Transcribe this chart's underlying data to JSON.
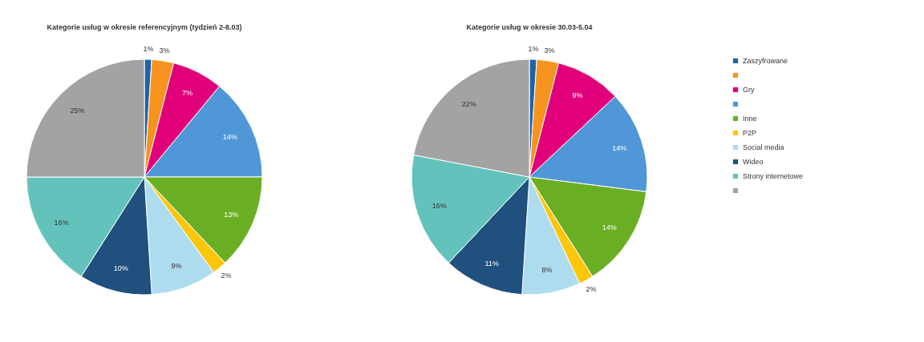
{
  "chart_data": [
    {
      "type": "pie",
      "title": "Kategorie usług w okresie referencyjnym (tydzień 2-8.03)",
      "categories": [
        "Zaszyfrowane",
        null,
        "Gry",
        null,
        "Inne",
        "P2P",
        "Social media",
        "Wideo",
        "Strony internetowe",
        null
      ],
      "values": [
        1,
        3,
        7,
        14,
        13,
        2,
        9,
        10,
        16,
        25
      ],
      "value_labels": [
        "1%",
        "3%",
        "7%",
        "14%",
        "13%",
        "2%",
        "9%",
        "10%",
        "16%",
        "25%"
      ],
      "colors": [
        "#1f62a6",
        "#f7931e",
        "#e2007a",
        "#4f97d6",
        "#6aaf23",
        "#fcc60a",
        "#addcef",
        "#20507e",
        "#63c3bc",
        "#a3a3a3"
      ],
      "legend": "right"
    },
    {
      "type": "pie",
      "title": "Kategorie usług w okresie 30.03-5.04",
      "values": [
        1,
        3,
        9,
        14,
        14,
        2,
        8,
        11,
        16,
        22
      ],
      "value_labels": [
        "1%",
        "3%",
        "9%",
        "14%",
        "14%",
        "2%",
        "8%",
        "11%",
        "16%",
        "22%"
      ],
      "colors": [
        "#1f62a6",
        "#f7931e",
        "#e2007a",
        "#4f97d6",
        "#6aaf23",
        "#fcc60a",
        "#addcef",
        "#20507e",
        "#63c3bc",
        "#a3a3a3"
      ]
    }
  ]
}
